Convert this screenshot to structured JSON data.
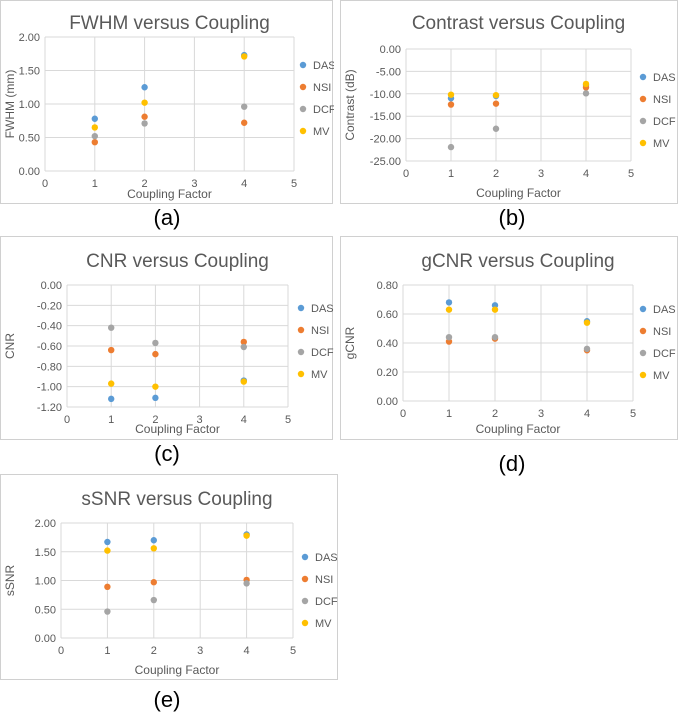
{
  "colors": {
    "DAS": "#5b9bd5",
    "NSI": "#ed7d31",
    "DCF": "#a5a5a5",
    "MV": "#ffc000",
    "grid": "#d9d9d9",
    "text": "#595959"
  },
  "chart_data": [
    {
      "type": "scatter",
      "caption": "(a)",
      "title": "FWHM versus Coupling",
      "xlabel": "Coupling Factor",
      "ylabel": "FWHM (mm)",
      "xlim": [
        0,
        5
      ],
      "ylim": [
        0,
        2
      ],
      "xticks": [
        0,
        1,
        2,
        3,
        4,
        5
      ],
      "yticks": [
        "0.00",
        "0.50",
        "1.00",
        "1.50",
        "2.00"
      ],
      "ytick_values": [
        0,
        0.5,
        1,
        1.5,
        2
      ],
      "grid": true,
      "legend": "right",
      "x": [
        1,
        2,
        4
      ],
      "series": [
        {
          "name": "DAS",
          "values": [
            0.78,
            1.25,
            1.73
          ]
        },
        {
          "name": "NSI",
          "values": [
            0.43,
            0.81,
            0.72
          ]
        },
        {
          "name": "DCF",
          "values": [
            0.52,
            0.71,
            0.96
          ]
        },
        {
          "name": "MV",
          "values": [
            0.65,
            1.02,
            1.71
          ]
        }
      ]
    },
    {
      "type": "scatter",
      "caption": "(b)",
      "title": "Contrast versus Coupling",
      "xlabel": "Coupling Factor",
      "ylabel": "Contrast (dB)",
      "xlim": [
        0,
        5
      ],
      "ylim": [
        -25,
        0
      ],
      "xticks": [
        0,
        1,
        2,
        3,
        4,
        5
      ],
      "yticks": [
        "0.00",
        "-5.00",
        "-10.00",
        "-15.00",
        "-20.00",
        "-25.00"
      ],
      "ytick_values": [
        0,
        -5,
        -10,
        -15,
        -20,
        -25
      ],
      "grid": true,
      "legend": "right",
      "x": [
        1,
        2,
        4
      ],
      "series": [
        {
          "name": "DAS",
          "values": [
            -11.0,
            -10.5,
            -8.0
          ]
        },
        {
          "name": "NSI",
          "values": [
            -12.4,
            -12.2,
            -8.6
          ]
        },
        {
          "name": "DCF",
          "values": [
            -21.9,
            -17.8,
            -9.9
          ]
        },
        {
          "name": "MV",
          "values": [
            -10.2,
            -10.3,
            -7.8
          ]
        }
      ]
    },
    {
      "type": "scatter",
      "caption": "(c)",
      "title": "CNR versus Coupling",
      "xlabel": "Coupling Factor",
      "ylabel": "CNR",
      "xlim": [
        0,
        5
      ],
      "ylim": [
        -1.2,
        0
      ],
      "xticks": [
        0,
        1,
        2,
        3,
        4,
        5
      ],
      "yticks": [
        "0.00",
        "-0.20",
        "-0.40",
        "-0.60",
        "-0.80",
        "-1.00",
        "-1.20"
      ],
      "ytick_values": [
        0,
        -0.2,
        -0.4,
        -0.6,
        -0.8,
        -1.0,
        -1.2
      ],
      "grid": true,
      "legend": "right",
      "x": [
        1,
        2,
        4
      ],
      "series": [
        {
          "name": "DAS",
          "values": [
            -1.12,
            -1.11,
            -0.94
          ]
        },
        {
          "name": "NSI",
          "values": [
            -0.64,
            -0.68,
            -0.56
          ]
        },
        {
          "name": "DCF",
          "values": [
            -0.42,
            -0.57,
            -0.61
          ]
        },
        {
          "name": "MV",
          "values": [
            -0.97,
            -1.0,
            -0.95
          ]
        }
      ]
    },
    {
      "type": "scatter",
      "caption": "(d)",
      "title": "gCNR versus Coupling",
      "xlabel": "Coupling Factor",
      "ylabel": "gCNR",
      "xlim": [
        0,
        5
      ],
      "ylim": [
        0,
        0.8
      ],
      "xticks": [
        0,
        1,
        2,
        3,
        4,
        5
      ],
      "yticks": [
        "0.00",
        "0.20",
        "0.40",
        "0.60",
        "0.80"
      ],
      "ytick_values": [
        0,
        0.2,
        0.4,
        0.6,
        0.8
      ],
      "grid": true,
      "legend": "right",
      "x": [
        1,
        2,
        4
      ],
      "series": [
        {
          "name": "DAS",
          "values": [
            0.68,
            0.66,
            0.55
          ]
        },
        {
          "name": "NSI",
          "values": [
            0.41,
            0.43,
            0.35
          ]
        },
        {
          "name": "DCF",
          "values": [
            0.44,
            0.44,
            0.36
          ]
        },
        {
          "name": "MV",
          "values": [
            0.63,
            0.63,
            0.54
          ]
        }
      ]
    },
    {
      "type": "scatter",
      "caption": "(e)",
      "title": "sSNR versus Coupling",
      "xlabel": "Coupling Factor",
      "ylabel": "sSNR",
      "xlim": [
        0,
        5
      ],
      "ylim": [
        0,
        2
      ],
      "xticks": [
        0,
        1,
        2,
        3,
        4,
        5
      ],
      "yticks": [
        "0.00",
        "0.50",
        "1.00",
        "1.50",
        "2.00"
      ],
      "ytick_values": [
        0,
        0.5,
        1,
        1.5,
        2
      ],
      "grid": true,
      "legend": "right",
      "x": [
        1,
        2,
        4
      ],
      "series": [
        {
          "name": "DAS",
          "values": [
            1.67,
            1.7,
            1.8
          ]
        },
        {
          "name": "NSI",
          "values": [
            0.89,
            0.97,
            1.01
          ]
        },
        {
          "name": "DCF",
          "values": [
            0.46,
            0.66,
            0.95
          ]
        },
        {
          "name": "MV",
          "values": [
            1.52,
            1.56,
            1.78
          ]
        }
      ]
    }
  ]
}
